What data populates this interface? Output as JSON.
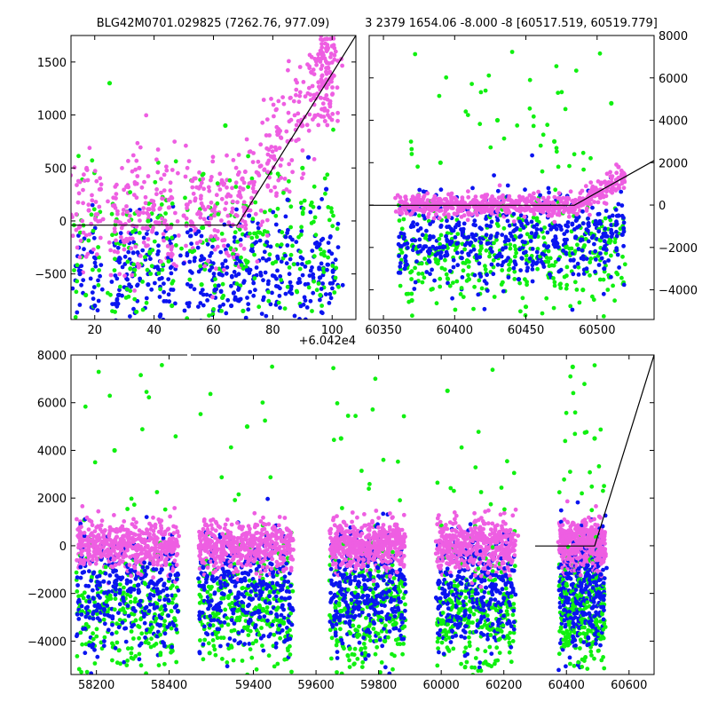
{
  "figure": {
    "titles": {
      "top_left": "BLG42M0701.029825 (7262.76, 977.09)",
      "top_right": "3 2379 1654.06 -8.000 -8 [60517.519, 60519.779]"
    },
    "offset_text": "+6.042e4"
  },
  "colors": {
    "magenta": "#ee5ee2",
    "blue": "#0a14f0",
    "green": "#10f010",
    "line": "#000000"
  },
  "chart_data": [
    {
      "id": "top-left",
      "type": "scatter",
      "title": "BLG42M0701.029825 (7262.76, 977.09)",
      "xlim": [
        12,
        108
      ],
      "ylim": [
        -930,
        1750
      ],
      "xticks": [
        20,
        40,
        60,
        80,
        100
      ],
      "xtick_labels": [
        "20",
        "40",
        "60",
        "80",
        "100"
      ],
      "yticks": [
        -500,
        0,
        500,
        1000,
        1500
      ],
      "ytick_labels": [
        "−500",
        "0",
        "500",
        "1000",
        "1500"
      ],
      "x_offset_label": "+6.042e4",
      "series": [
        {
          "color": "magenta",
          "x": [
            15,
            18,
            22,
            30,
            35,
            40,
            45,
            50,
            60,
            65,
            70,
            75,
            80,
            85,
            90,
            95,
            100
          ],
          "y": [
            -50,
            100,
            300,
            -200,
            500,
            150,
            200,
            50,
            100,
            250,
            300,
            450,
            600,
            750,
            900,
            1200,
            1650
          ]
        },
        {
          "color": "blue",
          "x": [
            15,
            20,
            28,
            33,
            38,
            42,
            50,
            55,
            62,
            66,
            72,
            78,
            85,
            92,
            98
          ],
          "y": [
            -500,
            -800,
            -700,
            -300,
            -600,
            -900,
            -400,
            -100,
            -500,
            -800,
            50,
            -200,
            200,
            600,
            300
          ]
        },
        {
          "color": "green",
          "x": [
            17,
            25,
            32,
            38,
            46,
            56,
            64,
            70,
            80,
            90,
            96
          ],
          "y": [
            -700,
            1300,
            -450,
            0,
            -800,
            -600,
            900,
            -850,
            -400,
            500,
            -700
          ]
        }
      ],
      "model_line": {
        "x": [
          12,
          68,
          108
        ],
        "y": [
          -40,
          -40,
          1750
        ]
      }
    },
    {
      "id": "top-right",
      "type": "scatter",
      "title": "3 2379 1654.06 -8.000 -8 [60517.519, 60519.779]",
      "xlim": [
        60340,
        60540
      ],
      "ylim": [
        -5400,
        8000
      ],
      "y_axis_side": "right",
      "xticks": [
        60350,
        60400,
        60450,
        60500
      ],
      "xtick_labels": [
        "60350",
        "60400",
        "60450",
        "60500"
      ],
      "yticks": [
        -4000,
        -2000,
        0,
        2000,
        4000,
        6000,
        8000
      ],
      "ytick_labels": [
        "−4000",
        "−2000",
        "0",
        "2000",
        "4000",
        "6000",
        "8000"
      ],
      "series": [
        {
          "color": "magenta",
          "x": [
            60362,
            60380,
            60400,
            60420,
            60440,
            60460,
            60480,
            60500,
            60515
          ],
          "y": [
            -200,
            0,
            100,
            -100,
            200,
            0,
            300,
            500,
            1800
          ]
        },
        {
          "color": "blue",
          "x": [
            60365,
            60385,
            60405,
            60425,
            60445,
            60465,
            60485,
            60505,
            60515
          ],
          "y": [
            -3000,
            -1500,
            -2500,
            -1000,
            -3500,
            -2000,
            -1500,
            -3000,
            -500
          ]
        },
        {
          "color": "green",
          "x": [
            60370,
            60390,
            60410,
            60430,
            60450,
            60470,
            60490,
            60510
          ],
          "y": [
            -4500,
            2000,
            -3500,
            4000,
            -4800,
            3000,
            -4000,
            4800
          ]
        }
      ],
      "model_line": {
        "x": [
          60340,
          60484,
          60540
        ],
        "y": [
          -10,
          -10,
          2100
        ]
      }
    },
    {
      "id": "bottom",
      "type": "scatter",
      "title": "",
      "xlim": [
        58130,
        60680
      ],
      "ylim": [
        -5400,
        8000
      ],
      "broken_x_axis": true,
      "xticks": [
        58200,
        58400,
        59400,
        59600,
        59800,
        60000,
        60200,
        60400,
        60600
      ],
      "xtick_labels": [
        "58200",
        "58400",
        "59400",
        "59600",
        "59800",
        "60000",
        "60200",
        "60400",
        "60600"
      ],
      "yticks": [
        -4000,
        -2000,
        0,
        2000,
        4000,
        6000,
        8000
      ],
      "ytick_labels": [
        "−4000",
        "−2000",
        "0",
        "2000",
        "4000",
        "6000",
        "8000"
      ],
      "seasons": [
        [
          58150,
          58420
        ],
        [
          59230,
          59520
        ],
        [
          59650,
          59880
        ],
        [
          59990,
          60230
        ],
        [
          60380,
          60520
        ]
      ],
      "series": [
        {
          "color": "magenta",
          "x": [
            58200,
            58300,
            58400,
            59300,
            59400,
            59500,
            59700,
            59800,
            60050,
            60150,
            60420,
            60500
          ],
          "y": [
            200,
            -100,
            100,
            0,
            300,
            -200,
            100,
            -100,
            0,
            200,
            -100,
            600
          ]
        },
        {
          "color": "blue",
          "x": [
            58220,
            58320,
            58380,
            59300,
            59420,
            59500,
            59700,
            59850,
            60050,
            60200,
            60450,
            60510
          ],
          "y": [
            -1500,
            -2500,
            -1000,
            -2000,
            -3000,
            -1500,
            -2500,
            -1800,
            -3000,
            -2200,
            -2800,
            -1200
          ]
        },
        {
          "color": "green",
          "x": [
            58250,
            58350,
            59260,
            59380,
            59480,
            59680,
            59820,
            60020,
            60180,
            60420,
            60490
          ],
          "y": [
            4000,
            -3500,
            -4500,
            5000,
            -3500,
            4500,
            -4000,
            6500,
            -3500,
            7500,
            4500
          ]
        }
      ],
      "model_line": {
        "x": [
          60300,
          60490,
          60680
        ],
        "y": [
          -10,
          -10,
          8000
        ]
      }
    }
  ]
}
